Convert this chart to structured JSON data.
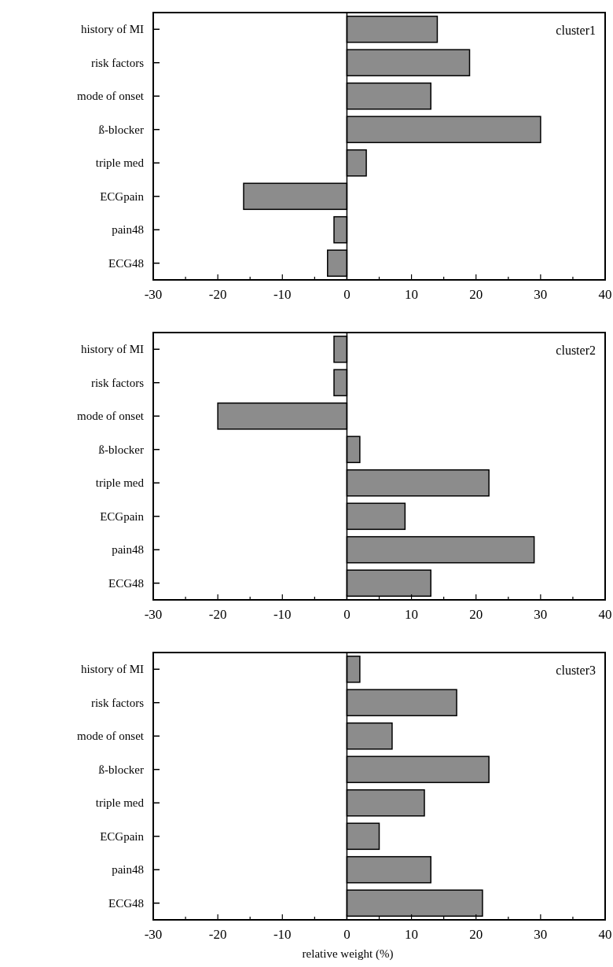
{
  "chart_data": [
    {
      "type": "bar",
      "orientation": "horizontal",
      "categories": [
        "history of MI",
        "risk factors",
        "mode of onset",
        "ß-blocker",
        "triple med",
        "ECGpain",
        "pain48",
        "ECG48"
      ],
      "values": [
        14,
        19,
        13,
        30,
        3,
        -16,
        -2,
        -3
      ],
      "color": "#8c8c8c",
      "xlim": [
        -30,
        40
      ],
      "xticks": [
        -30,
        {
          "value": -25,
          "label": null
        },
        -20,
        {
          "value": -15,
          "label": null
        },
        -10,
        {
          "value": -5,
          "label": null
        },
        0,
        {
          "value": 5,
          "label": null
        },
        10,
        {
          "value": 15,
          "label": null
        },
        20,
        {
          "value": 25,
          "label": null
        },
        30,
        {
          "value": 35,
          "label": null
        },
        40
      ],
      "annotations": [
        "cluster1"
      ]
    },
    {
      "type": "bar",
      "orientation": "horizontal",
      "categories": [
        "history of MI",
        "risk factors",
        "mode of onset",
        "ß-blocker",
        "triple med",
        "ECGpain",
        "pain48",
        "ECG48"
      ],
      "values": [
        -2,
        -2,
        -20,
        2,
        22,
        9,
        29,
        13
      ],
      "color": "#8c8c8c",
      "xlim": [
        -30,
        40
      ],
      "xticks": [
        -30,
        {
          "value": -25,
          "label": null
        },
        -20,
        {
          "value": -15,
          "label": null
        },
        -10,
        {
          "value": -5,
          "label": null
        },
        0,
        {
          "value": 5,
          "label": null
        },
        10,
        {
          "value": 15,
          "label": null
        },
        20,
        {
          "value": 25,
          "label": null
        },
        30,
        {
          "value": 35,
          "label": null
        },
        40
      ],
      "annotations": [
        "cluster2"
      ]
    },
    {
      "type": "bar",
      "orientation": "horizontal",
      "categories": [
        "history of MI",
        "risk factors",
        "mode of onset",
        "ß-blocker",
        "triple med",
        "ECGpain",
        "pain48",
        "ECG48"
      ],
      "values": [
        2,
        17,
        7,
        22,
        12,
        5,
        13,
        21
      ],
      "color": "#8c8c8c",
      "xlim": [
        -30,
        40
      ],
      "xticks": [
        -30,
        {
          "value": -25,
          "label": null
        },
        -20,
        {
          "value": -15,
          "label": null
        },
        -10,
        {
          "value": -5,
          "label": null
        },
        0,
        {
          "value": 5,
          "label": null
        },
        10,
        {
          "value": 15,
          "label": null
        },
        20,
        {
          "value": 25,
          "label": null
        },
        30,
        {
          "value": 35,
          "label": null
        },
        40
      ],
      "xlabel": "relative weight (%)",
      "annotations": [
        "cluster3"
      ]
    }
  ]
}
